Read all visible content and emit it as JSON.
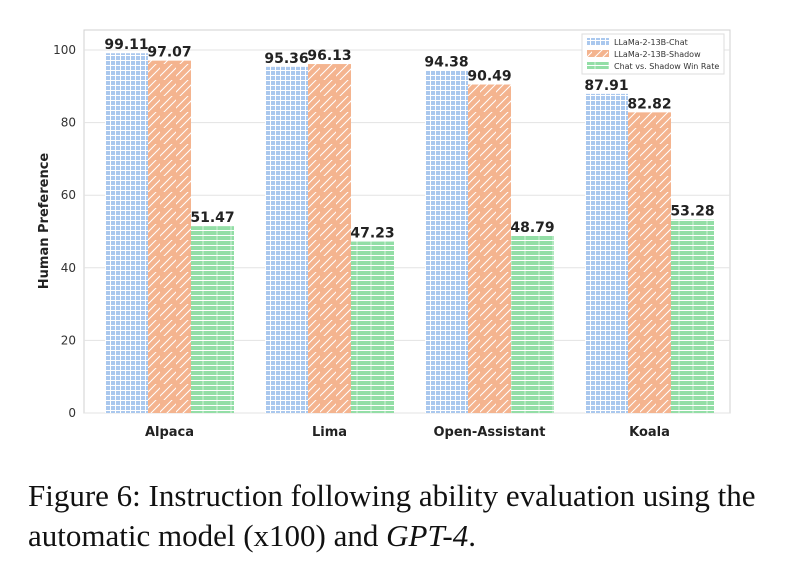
{
  "chart_data": {
    "type": "bar",
    "categories": [
      "Alpaca",
      "Lima",
      "Open-Assistant",
      "Koala"
    ],
    "series": [
      {
        "name": "LLaMa-2-13B-Chat",
        "values": [
          99.11,
          95.36,
          94.38,
          87.91
        ]
      },
      {
        "name": "LLaMa-2-13B-Shadow",
        "values": [
          97.07,
          96.13,
          90.49,
          82.82
        ]
      },
      {
        "name": "Chat vs. Shadow Win Rate",
        "values": [
          51.47,
          47.23,
          48.79,
          53.28
        ]
      }
    ],
    "value_labels": [
      [
        "99.11",
        "95.36",
        "94.38",
        "87.91"
      ],
      [
        "97.07",
        "96.13",
        "90.49",
        "82.82"
      ],
      [
        "51.47",
        "47.23",
        "48.79",
        "53.28"
      ]
    ],
    "ylabel": "Human Preference",
    "ylim": [
      0,
      100
    ],
    "yticks": [
      "0",
      "20",
      "40",
      "60",
      "80",
      "100"
    ],
    "grid": true,
    "legend_position": "top-right",
    "colors": [
      "#aac8ee",
      "#f4b48f",
      "#93dea6"
    ]
  },
  "caption": {
    "prefix": "Figure 6:  Instruction following ability evaluation using the automatic model (x100) and ",
    "italic": "GPT-4",
    "suffix": "."
  }
}
